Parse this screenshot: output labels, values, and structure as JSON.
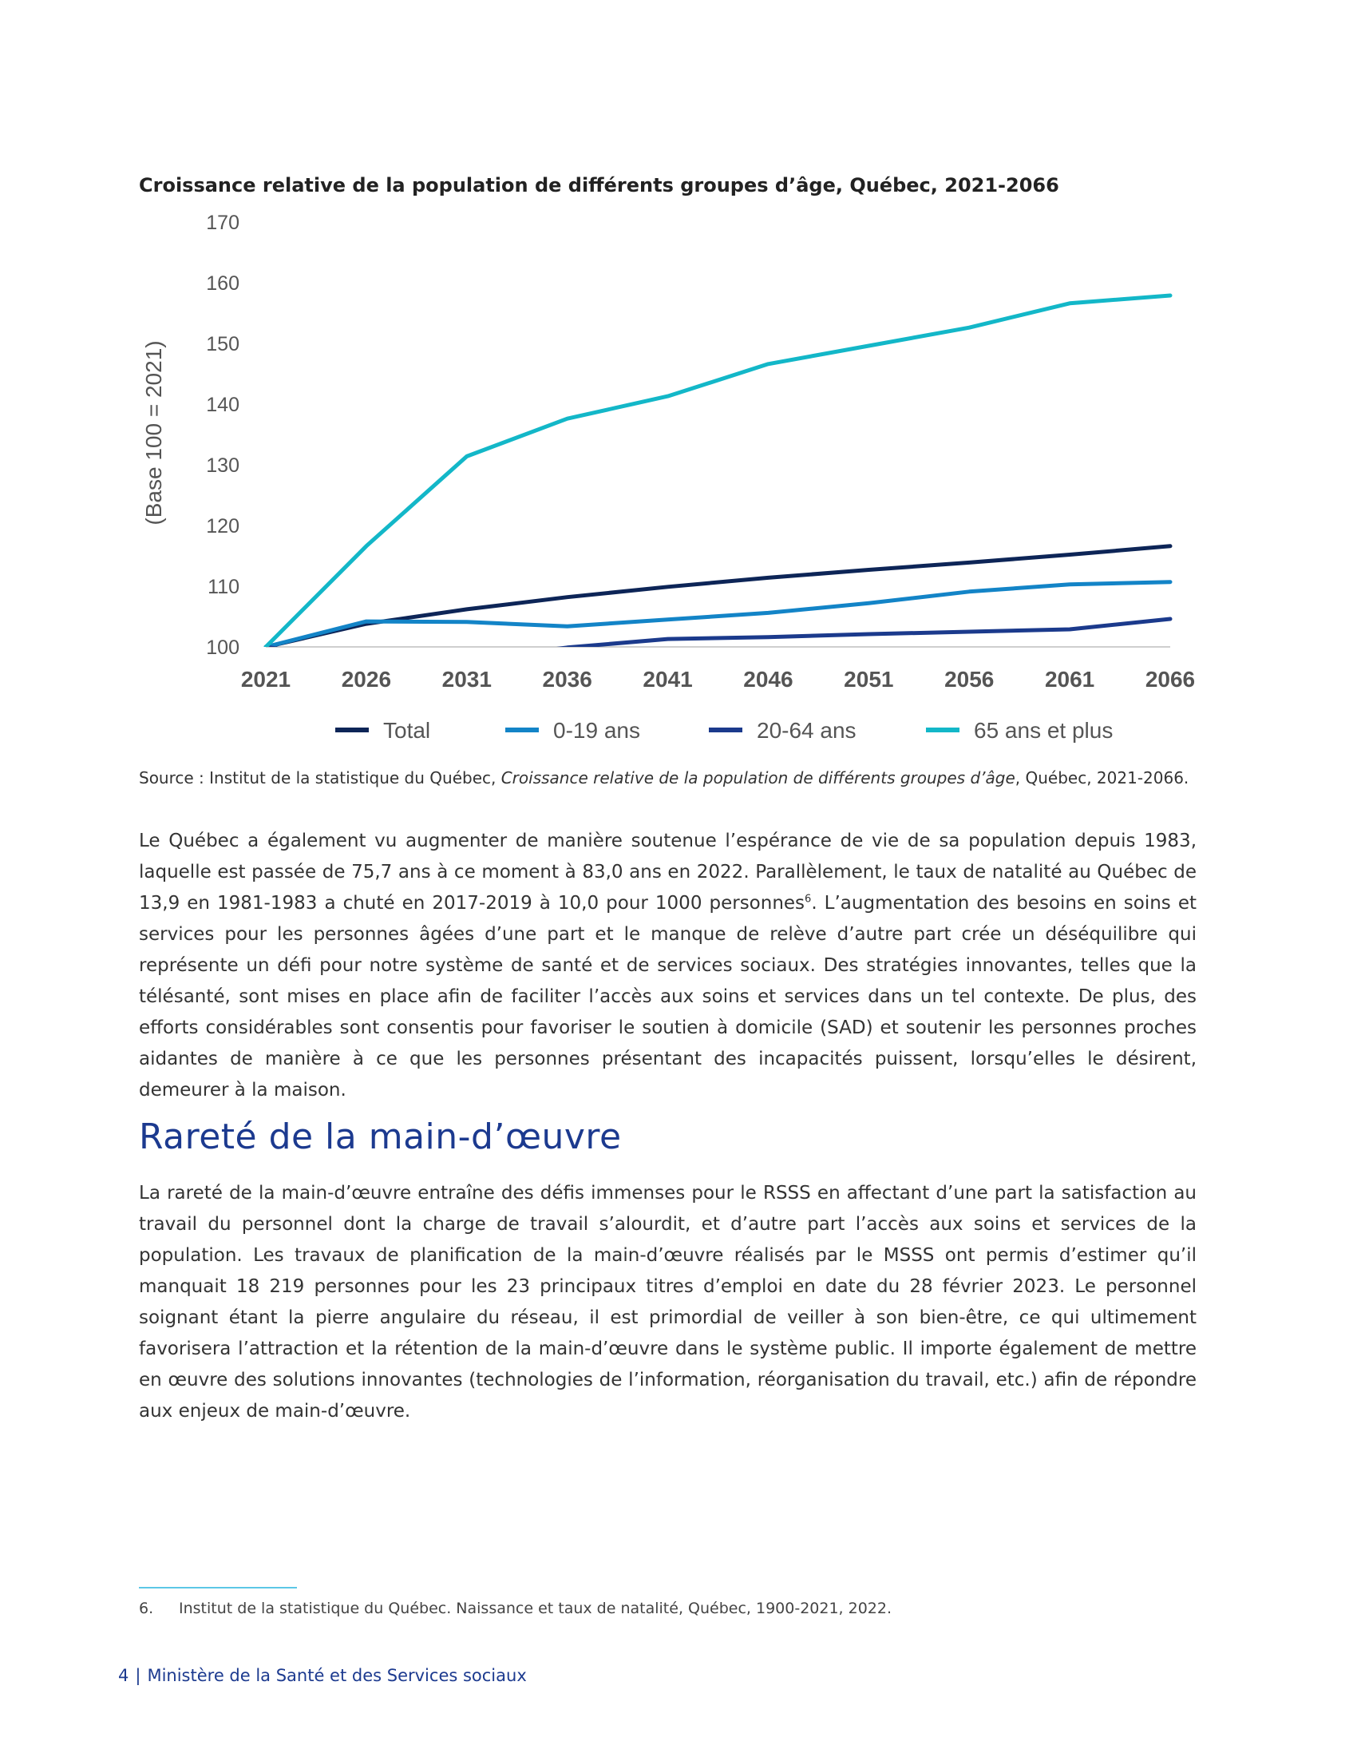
{
  "chart_data": {
    "type": "line",
    "title": "Croissance relative de la population de différents groupes d’âge, Québec, 2021-2066",
    "ylabel": "(Base 100 = 2021)",
    "xlabel": "",
    "categories": [
      "2021",
      "2026",
      "2031",
      "2036",
      "2041",
      "2046",
      "2051",
      "2056",
      "2061",
      "2066"
    ],
    "ylim": [
      100,
      170
    ],
    "yticks": [
      100,
      110,
      120,
      130,
      140,
      150,
      160,
      170
    ],
    "grid": false,
    "legend_position": "bottom",
    "series": [
      {
        "name": "Total",
        "color": "#0d2557",
        "values": [
          100,
          103.8,
          106.2,
          108.2,
          109.9,
          111.4,
          112.7,
          113.9,
          115.2,
          116.6
        ]
      },
      {
        "name": "0-19 ans",
        "color": "#1384c7",
        "values": [
          100,
          104.2,
          104.1,
          103.4,
          104.5,
          105.6,
          107.2,
          109.1,
          110.3,
          110.7
        ]
      },
      {
        "name": "20-64 ans",
        "color": "#1b3a8c",
        "values": [
          100,
          97.5,
          97.8,
          99.9,
          101.3,
          101.6,
          102.1,
          102.5,
          102.9,
          104.6
        ]
      },
      {
        "name": "65 ans et plus",
        "color": "#13b7c8",
        "values": [
          100,
          116.6,
          131.4,
          137.6,
          141.3,
          146.6,
          149.6,
          152.6,
          156.6,
          157.9
        ]
      }
    ]
  },
  "source": {
    "prefix": "Source : Institut de la statistique du Québec, ",
    "title_italic": "Croissance relative de la population de différents groupes d’âge",
    "suffix": ", Québec, 2021-2066."
  },
  "para1": {
    "text_a": "Le Québec a également vu augmenter de manière soutenue l’espérance de vie de sa population depuis 1983, laquelle est passée de 75,7 ans à ce moment à 83,0 ans en 2022. Parallèlement, le taux de natalité au Québec de 13,9 en 1981-1983 a chuté en 2017-2019 à 10,0 pour 1000 personnes",
    "footnote_ref": "6",
    "text_b": ". L’augmentation des besoins en soins et services pour les personnes âgées d’une part et le manque de relève d’autre part crée un déséquilibre qui représente un défi pour notre système de santé et de services sociaux. Des stratégies innovantes, telles que la télésanté, sont mises en place afin de faciliter l’accès aux soins et services dans un tel contexte. De plus, des efforts considérables sont consentis pour favoriser le soutien à domicile (SAD) et soutenir les personnes proches aidantes de manière à ce que les personnes présentant des incapacités puissent, lorsqu’elles le désirent, demeurer à la maison."
  },
  "heading": "Rareté de la main-d’œuvre",
  "para2": "La rareté de la main-d’œuvre entraîne des défis immenses pour le RSSS en affectant d’une part la satisfaction au travail du personnel dont la charge de travail s’alourdit, et d’autre part l’accès aux soins et services de la population. Les travaux de planification de la main-d’œuvre réalisés par le MSSS ont permis d’estimer qu’il manquait 18 219 personnes pour les 23 principaux titres d’emploi en date du 28 février 2023. Le personnel soignant étant la pierre angulaire du réseau, il est primordial de veiller à son bien-être, ce qui ultimement favorisera l’attraction et la rétention de la main-d’œuvre dans le système public. Il importe également de mettre en œuvre des solutions innovantes (technologies de l’information, réorganisation du travail, etc.) afin de répondre aux enjeux de main-d’œuvre.",
  "footnote": {
    "number": "6.",
    "text": "Institut de la statistique du Québec. Naissance et taux de natalité, Québec, 1900-2021, 2022."
  },
  "footer": {
    "page_number": "4",
    "separator": "|",
    "ministry": "Ministère de la Santé et des Services sociaux"
  }
}
